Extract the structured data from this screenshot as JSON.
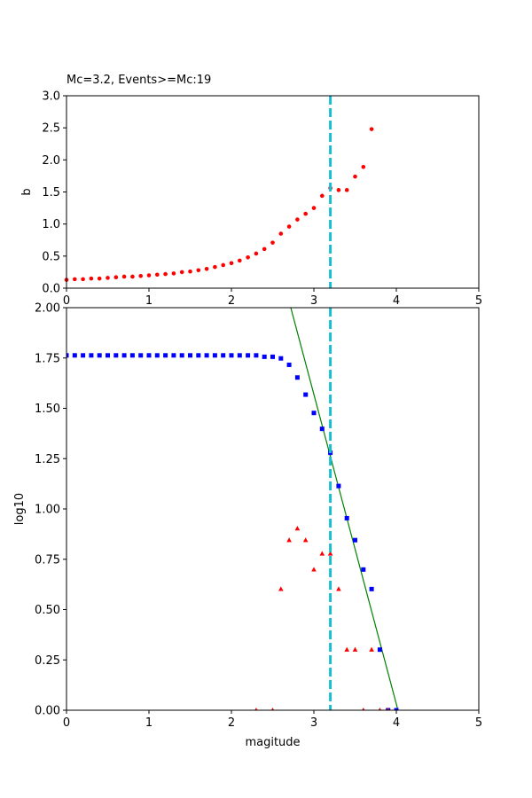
{
  "chart_data": [
    {
      "type": "scatter",
      "title": "Mc=3.2, Events>=Mc:19",
      "xlabel": "",
      "ylabel": "b",
      "xlim": [
        0,
        5
      ],
      "ylim": [
        0,
        3
      ],
      "x_ticks": [
        "0",
        "1",
        "2",
        "3",
        "4",
        "5"
      ],
      "y_ticks": [
        "0.0",
        "0.5",
        "1.0",
        "1.5",
        "2.0",
        "2.5",
        "3.0"
      ],
      "mc_line": 3.2,
      "colors": {
        "points": "#ff0000",
        "mc_line": "#17becf"
      },
      "series": [
        {
          "x": [
            0.0,
            0.1,
            0.2,
            0.3,
            0.4,
            0.5,
            0.6,
            0.7,
            0.8,
            0.9,
            1.0,
            1.1,
            1.2,
            1.3,
            1.4,
            1.5,
            1.6,
            1.7,
            1.8,
            1.9,
            2.0,
            2.1,
            2.2,
            2.3,
            2.4,
            2.5,
            2.6,
            2.7,
            2.8,
            2.9,
            3.0,
            3.1,
            3.2,
            3.3,
            3.4,
            3.5,
            3.6,
            3.7
          ],
          "y": [
            0.13,
            0.14,
            0.14,
            0.15,
            0.15,
            0.16,
            0.17,
            0.18,
            0.18,
            0.19,
            0.2,
            0.21,
            0.22,
            0.23,
            0.25,
            0.26,
            0.28,
            0.3,
            0.33,
            0.36,
            0.39,
            0.43,
            0.48,
            0.54,
            0.61,
            0.71,
            0.85,
            0.96,
            1.07,
            1.16,
            1.25,
            1.44,
            1.56,
            1.53,
            1.53,
            1.74,
            1.89,
            2.48
          ]
        }
      ]
    },
    {
      "type": "scatter",
      "title": "",
      "xlabel": "magitude",
      "ylabel": "log10",
      "xlim": [
        0,
        5
      ],
      "ylim": [
        0,
        2
      ],
      "x_ticks": [
        "0",
        "1",
        "2",
        "3",
        "4",
        "5"
      ],
      "y_ticks": [
        "0.00",
        "0.25",
        "0.50",
        "0.75",
        "1.00",
        "1.25",
        "1.50",
        "1.75",
        "2.00"
      ],
      "mc_line": 3.2,
      "fit_line": {
        "x": [
          2.72,
          4.02
        ],
        "y": [
          2.0,
          0.0
        ]
      },
      "colors": {
        "cumulative": "#0000ff",
        "noncumulative": "#ff0000",
        "fit": "#008000",
        "mc_line": "#17becf"
      },
      "series": [
        {
          "marker": "square",
          "x": [
            0.0,
            0.1,
            0.2,
            0.3,
            0.4,
            0.5,
            0.6,
            0.7,
            0.8,
            0.9,
            1.0,
            1.1,
            1.2,
            1.3,
            1.4,
            1.5,
            1.6,
            1.7,
            1.8,
            1.9,
            2.0,
            2.1,
            2.2,
            2.3,
            2.4,
            2.5,
            2.6,
            2.7,
            2.8,
            2.9,
            3.0,
            3.1,
            3.2,
            3.3,
            3.4,
            3.5,
            3.6,
            3.7,
            3.8,
            3.9,
            4.0
          ],
          "y": [
            1.763,
            1.763,
            1.763,
            1.763,
            1.763,
            1.763,
            1.763,
            1.763,
            1.763,
            1.763,
            1.763,
            1.763,
            1.763,
            1.763,
            1.763,
            1.763,
            1.763,
            1.763,
            1.763,
            1.763,
            1.763,
            1.763,
            1.763,
            1.763,
            1.756,
            1.756,
            1.748,
            1.716,
            1.653,
            1.568,
            1.477,
            1.398,
            1.279,
            1.114,
            0.954,
            0.845,
            0.699,
            0.602,
            0.301,
            0.0,
            0.0
          ]
        },
        {
          "marker": "triangle",
          "x": [
            2.3,
            2.5,
            2.6,
            2.7,
            2.8,
            2.9,
            3.0,
            3.1,
            3.2,
            3.3,
            3.4,
            3.5,
            3.6,
            3.7,
            3.8,
            3.9
          ],
          "y": [
            0.0,
            0.0,
            0.602,
            0.845,
            0.903,
            0.845,
            0.699,
            0.778,
            0.778,
            0.602,
            0.301,
            0.301,
            0.0,
            0.301,
            0.0,
            0.0
          ]
        }
      ]
    }
  ]
}
